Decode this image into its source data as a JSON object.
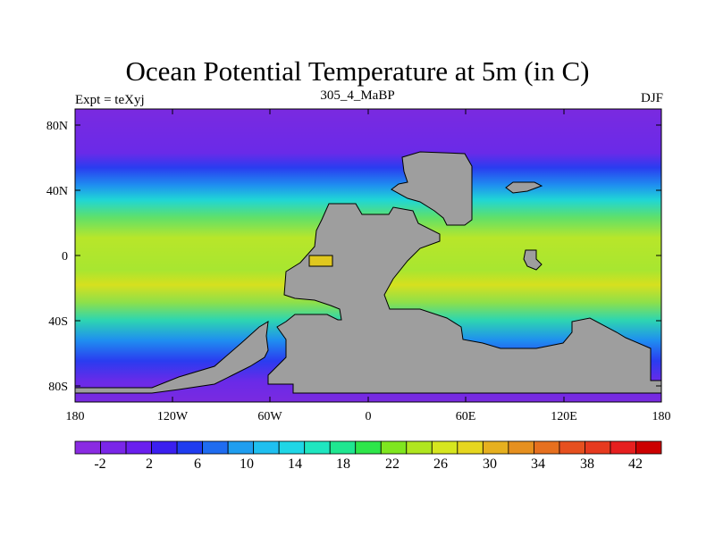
{
  "title": "Ocean Potential Temperature at 5m (in C)",
  "left_label": "Expt = teXyj",
  "center_label": "305_4_MaBP",
  "right_label": "DJF",
  "x_ticks": [
    "180",
    "120W",
    "60W",
    "0",
    "60E",
    "120E",
    "180"
  ],
  "y_ticks": [
    "80N",
    "40N",
    "0",
    "40S",
    "80S"
  ],
  "colorbar": {
    "labels": [
      "-2",
      "2",
      "6",
      "10",
      "14",
      "18",
      "22",
      "26",
      "30",
      "34",
      "38",
      "42"
    ],
    "colors": [
      "#8a2be2",
      "#7a26e8",
      "#6a1fee",
      "#3b1ff0",
      "#1f3cf0",
      "#1f6cf0",
      "#1f9ef0",
      "#1fbff0",
      "#1fd6e6",
      "#1fe6c0",
      "#1fe690",
      "#2ee64a",
      "#7fe61f",
      "#b0e61f",
      "#d6e61f",
      "#e6d61f",
      "#e6b01f",
      "#e6901f",
      "#e6701f",
      "#e6501f",
      "#e63a1f",
      "#e61f1f",
      "#cc0000"
    ]
  },
  "chart_data": {
    "type": "heatmap",
    "title": "Ocean Potential Temperature at 5m (in C)",
    "xlim": [
      -180,
      180
    ],
    "ylim": [
      -90,
      90
    ],
    "x_ticks": [
      -180,
      -120,
      -60,
      0,
      60,
      120,
      180
    ],
    "y_ticks": [
      80,
      40,
      0,
      -40,
      -80
    ],
    "colorbar_levels": [
      -2,
      2,
      6,
      10,
      14,
      18,
      22,
      26,
      30,
      34,
      38,
      42
    ],
    "land_color": "#9e9e9e",
    "band_temperatures": [
      {
        "lat_from": 90,
        "lat_to": 75,
        "value": -1
      },
      {
        "lat_from": 75,
        "lat_to": 58,
        "value": 3
      },
      {
        "lat_from": 58,
        "lat_to": 48,
        "value": 10
      },
      {
        "lat_from": 48,
        "lat_to": 36,
        "value": 17
      },
      {
        "lat_from": 36,
        "lat_to": 20,
        "value": 25
      },
      {
        "lat_from": 20,
        "lat_to": -30,
        "value": 28
      },
      {
        "lat_from": -30,
        "lat_to": -45,
        "value": 22
      },
      {
        "lat_from": -45,
        "lat_to": -58,
        "value": 14
      },
      {
        "lat_from": -58,
        "lat_to": -70,
        "value": 7
      },
      {
        "lat_from": -70,
        "lat_to": -90,
        "value": 2
      }
    ]
  }
}
